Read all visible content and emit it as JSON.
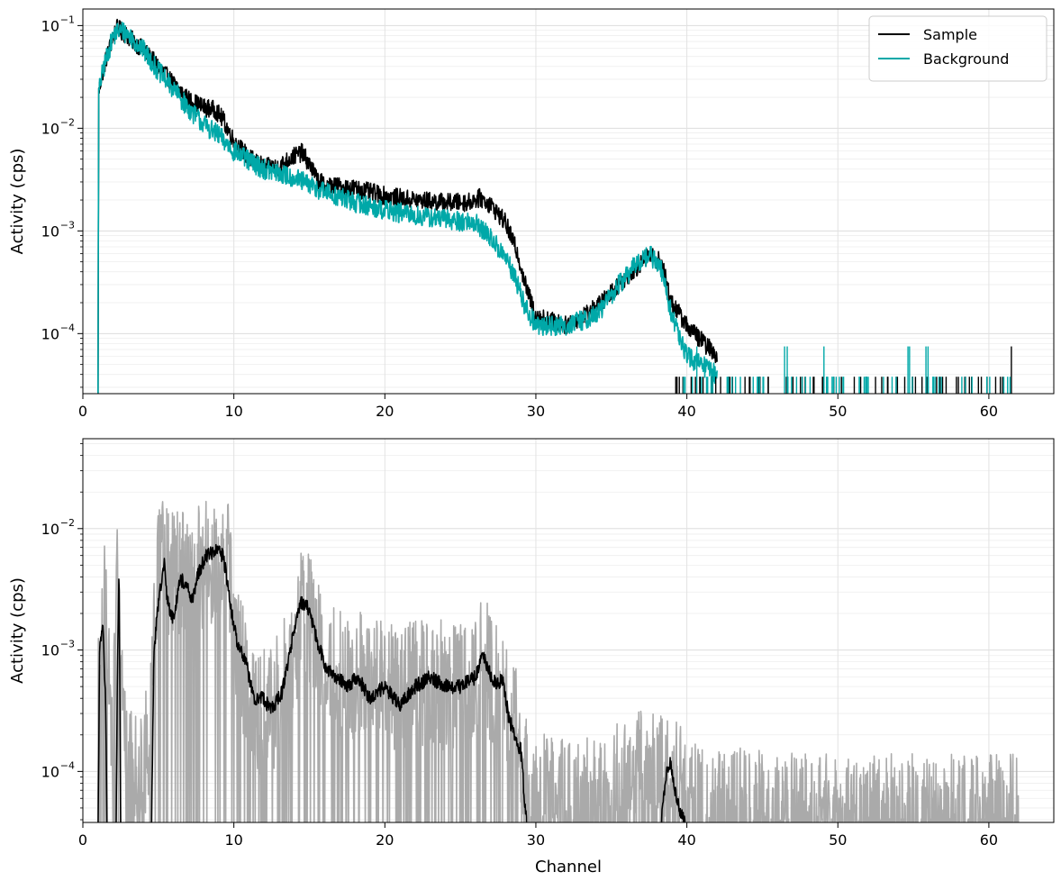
{
  "chart_data": [
    {
      "type": "line",
      "title": "",
      "xlabel": "",
      "ylabel": "Activity (cps)",
      "xlim": [
        0,
        64.3
      ],
      "ylim": [
        2.6e-05,
        0.145
      ],
      "yscale": "log",
      "x_ticks": [
        0,
        10,
        20,
        30,
        40,
        50,
        60
      ],
      "y_ticks": [
        0.0001,
        0.001,
        0.01,
        0.1
      ],
      "y_tick_labels": [
        "10",
        "10",
        "10",
        "10"
      ],
      "y_tick_exponents": [
        "−4",
        "−3",
        "−2",
        "−1"
      ],
      "grid": true,
      "legend": "top-right",
      "series": [
        {
          "name": "Sample",
          "color": "#000000",
          "noise": 0.09,
          "x": [
            1.0,
            1.05,
            1.2,
            1.5,
            2.0,
            2.3,
            2.6,
            3.0,
            4.0,
            5.0,
            6.0,
            7.0,
            8.0,
            8.8,
            9.3,
            10.0,
            11.0,
            12.0,
            13.0,
            13.8,
            14.5,
            15.0,
            15.5,
            16.0,
            17.0,
            18.0,
            20.0,
            22.0,
            24.0,
            25.5,
            26.3,
            27.0,
            28.0,
            28.8,
            29.3,
            30.0,
            32.0,
            34.0,
            35.5,
            36.5,
            37.5,
            38.3,
            39.0,
            40.0,
            42.0
          ],
          "y": [
            2.6e-05,
            0.022,
            0.03,
            0.045,
            0.078,
            0.095,
            0.087,
            0.078,
            0.058,
            0.04,
            0.027,
            0.019,
            0.016,
            0.015,
            0.012,
            0.0075,
            0.0052,
            0.0042,
            0.0042,
            0.0052,
            0.0058,
            0.0045,
            0.0032,
            0.0028,
            0.0027,
            0.0026,
            0.0022,
            0.002,
            0.0019,
            0.0019,
            0.0021,
            0.0018,
            0.0012,
            0.0006,
            0.0003,
            0.00015,
            0.00012,
            0.00018,
            0.0003,
            0.00042,
            0.00058,
            0.0005,
            0.0002,
            0.00012,
            6e-05
          ]
        },
        {
          "name": "Background",
          "color": "#00a8a8",
          "noise": 0.1,
          "x": [
            1.0,
            1.05,
            1.2,
            1.5,
            2.0,
            2.3,
            2.6,
            3.0,
            4.0,
            5.0,
            6.0,
            7.0,
            8.0,
            9.0,
            10.0,
            11.0,
            12.0,
            13.0,
            14.0,
            15.0,
            16.0,
            18.0,
            20.0,
            22.0,
            24.0,
            26.0,
            27.0,
            28.0,
            28.8,
            29.3,
            30.0,
            32.0,
            34.0,
            35.5,
            36.5,
            37.5,
            38.3,
            39.0,
            40.0,
            42.0
          ],
          "y": [
            2.6e-05,
            0.022,
            0.03,
            0.045,
            0.078,
            0.088,
            0.089,
            0.082,
            0.058,
            0.036,
            0.024,
            0.0155,
            0.011,
            0.0085,
            0.006,
            0.0048,
            0.004,
            0.0036,
            0.0033,
            0.0028,
            0.0024,
            0.0019,
            0.0016,
            0.0014,
            0.0013,
            0.0012,
            0.00085,
            0.00055,
            0.0003,
            0.00018,
            0.00012,
            0.00012,
            0.00015,
            0.0003,
            0.00045,
            0.0006,
            0.00042,
            0.00015,
            6e-05,
            4e-05
          ]
        }
      ]
    },
    {
      "type": "line",
      "title": "",
      "xlabel": "Channel",
      "ylabel": "Activity (cps)",
      "xlim": [
        0,
        64.3
      ],
      "ylim": [
        3.8e-05,
        0.055
      ],
      "yscale": "log",
      "x_ticks": [
        0,
        10,
        20,
        30,
        40,
        50,
        60
      ],
      "x_tick_labels": [
        "0",
        "10",
        "20",
        "30",
        "40",
        "50",
        "60"
      ],
      "y_ticks": [
        0.0001,
        0.001,
        0.01
      ],
      "y_tick_labels": [
        "10",
        "10",
        "10"
      ],
      "y_tick_exponents": [
        "−4",
        "−3",
        "−2"
      ],
      "grid": true,
      "series": [
        {
          "color": "#aaaaaa",
          "noise": 0.55,
          "x": [
            1.0,
            1.2,
            1.5,
            1.8,
            2.0,
            2.3,
            2.6,
            3.0,
            4.0,
            4.5,
            5.0,
            5.5,
            6.0,
            7.0,
            8.0,
            9.0,
            9.5,
            10.0,
            11.0,
            12.0,
            13.0,
            14.0,
            14.5,
            15.0,
            16.0,
            18.0,
            20.0,
            22.0,
            24.0,
            26.0,
            26.5,
            27.0,
            28.0,
            28.5,
            29.0,
            30.0,
            32.0,
            34.0,
            36.0,
            38.0,
            39.0,
            40.5,
            43.0,
            46.0,
            50.0,
            55.0,
            62.0
          ],
          "y": [
            0.0003,
            0.0015,
            0.0025,
            0.0004,
            0.0002,
            0.0045,
            0.0006,
            0.0001,
            0.0001,
            0.0003,
            0.005,
            0.0045,
            0.004,
            0.0038,
            0.005,
            0.0065,
            0.0065,
            0.0014,
            0.0004,
            0.0003,
            0.0004,
            0.0009,
            0.0025,
            0.0018,
            0.0008,
            0.0006,
            0.0005,
            0.0005,
            0.0005,
            0.0005,
            0.0009,
            0.0006,
            0.0004,
            0.0003,
            0.0001,
            6e-05,
            6e-05,
            6e-05,
            8e-05,
            0.0001,
            8e-05,
            5e-05,
            4.5e-05,
            4e-05,
            4e-05,
            4e-05,
            4e-05
          ]
        },
        {
          "color": "#000000",
          "noise": 0.06,
          "x": [
            1.0,
            1.05,
            1.1,
            1.3,
            1.5,
            1.6,
            2.2,
            2.3,
            2.4,
            2.5,
            4.55,
            4.7,
            5.0,
            5.4,
            5.6,
            6.0,
            6.4,
            6.9,
            7.2,
            7.7,
            8.2,
            8.9,
            9.3,
            9.8,
            10.2,
            10.8,
            11.3,
            11.9,
            12.5,
            13.2,
            13.8,
            14.4,
            14.9,
            15.5,
            16.1,
            16.8,
            17.5,
            18.2,
            19.0,
            20.0,
            21.0,
            22.0,
            23.0,
            24.0,
            25.0,
            26.0,
            26.5,
            27.2,
            27.8,
            28.2,
            28.7,
            29.0,
            29.3,
            29.4
          ],
          "y": [
            3.8e-05,
            0.0001,
            0.0009,
            0.0018,
            0.0004,
            3.8e-05,
            3.8e-05,
            0.0009,
            0.0045,
            3.8e-05,
            3.8e-05,
            0.0009,
            0.0025,
            0.0055,
            0.0025,
            0.0018,
            0.0038,
            0.0035,
            0.0025,
            0.0045,
            0.006,
            0.0065,
            0.006,
            0.0022,
            0.0012,
            0.0008,
            0.0004,
            0.0004,
            0.00032,
            0.00045,
            0.0011,
            0.0025,
            0.0022,
            0.0012,
            0.0007,
            0.0006,
            0.0005,
            0.0006,
            0.0004,
            0.0005,
            0.00035,
            0.0005,
            0.0006,
            0.0005,
            0.0005,
            0.0006,
            0.0009,
            0.00055,
            0.00055,
            0.00028,
            0.00018,
            0.00015,
            5e-05,
            3.8e-05
          ]
        },
        {
          "color": "#000000",
          "noise": 0.05,
          "x": [
            38.3,
            38.6,
            38.9,
            39.2,
            39.6,
            40.0
          ],
          "y": [
            3.8e-05,
            9e-05,
            0.00012,
            7e-05,
            4.5e-05,
            3.8e-05
          ]
        }
      ]
    }
  ]
}
